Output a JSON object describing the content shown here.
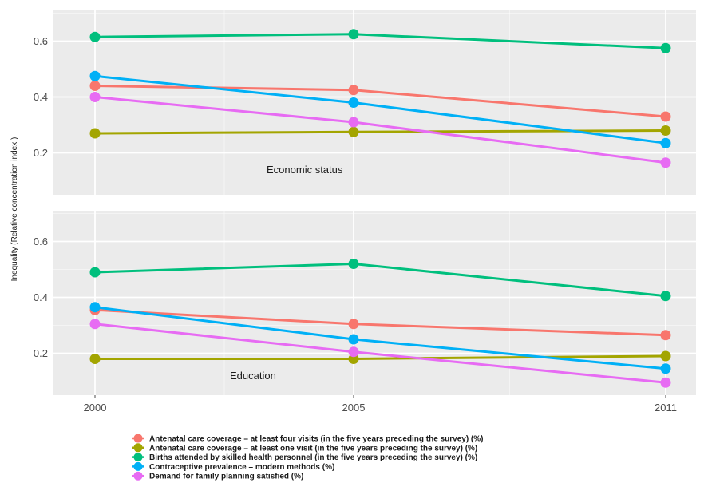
{
  "chart_data": {
    "type": "line",
    "ylabel": "Inequality (Relative concentration index )",
    "x": [
      "2000",
      "2005",
      "2011"
    ],
    "y_ticks": [
      "0.2",
      "0.4",
      "0.6"
    ],
    "grid": true,
    "legend_position": "bottom",
    "panels": [
      {
        "label": "Economic status",
        "ylim": [
          0.05,
          0.71
        ],
        "series": [
          {
            "name": "Antenatal care coverage – at least four visits (in the five years preceding the survey) (%)",
            "color": "#f8766d",
            "values": [
              0.44,
              0.425,
              0.33
            ]
          },
          {
            "name": "Antenatal care coverage – at least one visit (in the five years preceding the survey) (%)",
            "color": "#a3a500",
            "values": [
              0.27,
              0.275,
              0.28
            ]
          },
          {
            "name": "Births attended by skilled health personnel (in the five years preceding the survey) (%)",
            "color": "#00bf7d",
            "values": [
              0.615,
              0.625,
              0.575
            ]
          },
          {
            "name": "Contraceptive prevalence – modern methods (%)",
            "color": "#00b0f6",
            "values": [
              0.475,
              0.38,
              0.235
            ]
          },
          {
            "name": "Demand for family planning satisfied (%)",
            "color": "#e76bf3",
            "values": [
              0.4,
              0.31,
              0.165
            ]
          }
        ]
      },
      {
        "label": "Education",
        "ylim": [
          0.05,
          0.71
        ],
        "series": [
          {
            "name": "Antenatal care coverage – at least four visits (in the five years preceding the survey) (%)",
            "color": "#f8766d",
            "values": [
              0.355,
              0.305,
              0.265
            ]
          },
          {
            "name": "Antenatal care coverage – at least one visit (in the five years preceding the survey) (%)",
            "color": "#a3a500",
            "values": [
              0.18,
              0.18,
              0.19
            ]
          },
          {
            "name": "Births attended by skilled health personnel (in the five years preceding the survey) (%)",
            "color": "#00bf7d",
            "values": [
              0.49,
              0.52,
              0.405
            ]
          },
          {
            "name": "Contraceptive prevalence – modern methods (%)",
            "color": "#00b0f6",
            "values": [
              0.365,
              0.25,
              0.145
            ]
          },
          {
            "name": "Demand for family planning satisfied (%)",
            "color": "#e76bf3",
            "values": [
              0.305,
              0.205,
              0.095
            ]
          }
        ]
      }
    ],
    "legend": [
      {
        "label": "Antenatal care coverage – at least four visits (in the five years preceding the survey) (%)",
        "color": "#f8766d"
      },
      {
        "label": "Antenatal care coverage – at least one visit (in the five years preceding the survey) (%)",
        "color": "#a3a500"
      },
      {
        "label": "Births attended by skilled health personnel (in the five years preceding the survey) (%)",
        "color": "#00bf7d"
      },
      {
        "label": "Contraceptive prevalence – modern methods (%)",
        "color": "#00b0f6"
      },
      {
        "label": "Demand for family planning satisfied (%)",
        "color": "#e76bf3"
      }
    ],
    "colors": {
      "panel_background": "#ebebeb",
      "grid": "#ffffff"
    }
  }
}
